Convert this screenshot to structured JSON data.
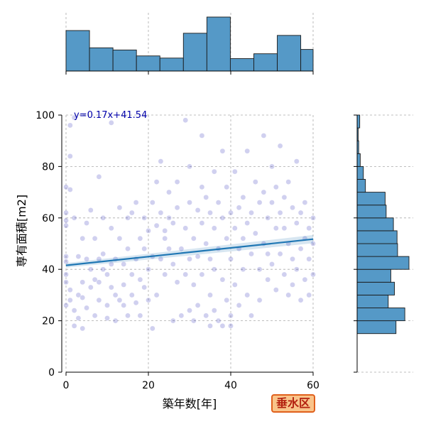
{
  "colors": {
    "hist_fill": "#5599c7",
    "hist_edge": "#1a1a1a",
    "point": "#2a2ab8",
    "regression": "#1f77b4",
    "grid": "#aaaaaa",
    "equation": "#0000aa",
    "badge_bg": "#f9c48a",
    "badge_border": "#e0601c",
    "badge_text": "#b3200f"
  },
  "badge": {
    "text": "垂水区"
  },
  "chart_data": {
    "type": "scatter",
    "xlabel": "築年数[年]",
    "ylabel": "専有面積[m2]",
    "xlim": [
      0,
      60
    ],
    "ylim": [
      0,
      100
    ],
    "x_ticks": [
      0,
      20,
      40,
      60
    ],
    "y_ticks": [
      0,
      20,
      40,
      60,
      80,
      100
    ],
    "grid": true,
    "regression": {
      "equation_label": "y=0.17x+41.54",
      "slope": 0.17,
      "intercept": 41.54
    },
    "marginal_x": {
      "type": "histogram",
      "bin_edges": [
        0,
        5.7,
        11.4,
        17.1,
        22.8,
        28.5,
        34.2,
        39.9,
        45.6,
        51.3,
        57,
        62.7
      ],
      "counts": [
        75,
        43,
        39,
        28,
        24,
        70,
        100,
        23,
        32,
        66,
        40
      ]
    },
    "marginal_y": {
      "type": "histogram",
      "bin_edges": [
        15,
        20,
        25,
        30,
        35,
        40,
        45,
        50,
        55,
        60,
        65,
        70,
        75,
        80,
        85,
        90,
        95,
        100
      ],
      "counts": [
        75,
        92,
        60,
        72,
        65,
        100,
        78,
        77,
        70,
        56,
        54,
        16,
        12,
        6,
        3,
        2,
        5
      ]
    },
    "points": [
      {
        "x": 0,
        "y": 43
      },
      {
        "x": 0,
        "y": 57
      },
      {
        "x": 0,
        "y": 62
      },
      {
        "x": 0,
        "y": 59
      },
      {
        "x": 0,
        "y": 72
      },
      {
        "x": 0,
        "y": 35
      },
      {
        "x": 0,
        "y": 26
      },
      {
        "x": 0,
        "y": 38
      },
      {
        "x": 0,
        "y": 45
      },
      {
        "x": 1,
        "y": 96
      },
      {
        "x": 1,
        "y": 71
      },
      {
        "x": 1,
        "y": 84
      },
      {
        "x": 1,
        "y": 28
      },
      {
        "x": 1,
        "y": 32
      },
      {
        "x": 2,
        "y": 99
      },
      {
        "x": 2,
        "y": 60
      },
      {
        "x": 2,
        "y": 24
      },
      {
        "x": 2,
        "y": 18
      },
      {
        "x": 3,
        "y": 45
      },
      {
        "x": 3,
        "y": 30
      },
      {
        "x": 3,
        "y": 21
      },
      {
        "x": 4,
        "y": 52
      },
      {
        "x": 4,
        "y": 35
      },
      {
        "x": 4,
        "y": 29
      },
      {
        "x": 4,
        "y": 17
      },
      {
        "x": 5,
        "y": 58
      },
      {
        "x": 5,
        "y": 44
      },
      {
        "x": 5,
        "y": 25
      },
      {
        "x": 6,
        "y": 63
      },
      {
        "x": 6,
        "y": 40
      },
      {
        "x": 6,
        "y": 33
      },
      {
        "x": 7,
        "y": 36
      },
      {
        "x": 7,
        "y": 52
      },
      {
        "x": 7,
        "y": 22
      },
      {
        "x": 8,
        "y": 44
      },
      {
        "x": 8,
        "y": 35
      },
      {
        "x": 8,
        "y": 76
      },
      {
        "x": 8,
        "y": 28
      },
      {
        "x": 9,
        "y": 46
      },
      {
        "x": 9,
        "y": 40
      },
      {
        "x": 9,
        "y": 60
      },
      {
        "x": 10,
        "y": 26
      },
      {
        "x": 10,
        "y": 38
      },
      {
        "x": 10,
        "y": 21
      },
      {
        "x": 11,
        "y": 56
      },
      {
        "x": 11,
        "y": 42
      },
      {
        "x": 11,
        "y": 33
      },
      {
        "x": 11,
        "y": 97
      },
      {
        "x": 12,
        "y": 20
      },
      {
        "x": 12,
        "y": 30
      },
      {
        "x": 12,
        "y": 44
      },
      {
        "x": 13,
        "y": 64
      },
      {
        "x": 13,
        "y": 52
      },
      {
        "x": 13,
        "y": 28
      },
      {
        "x": 14,
        "y": 34
      },
      {
        "x": 14,
        "y": 42
      },
      {
        "x": 14,
        "y": 26
      },
      {
        "x": 15,
        "y": 48
      },
      {
        "x": 15,
        "y": 22
      },
      {
        "x": 15,
        "y": 60
      },
      {
        "x": 16,
        "y": 38
      },
      {
        "x": 16,
        "y": 30
      },
      {
        "x": 16,
        "y": 62
      },
      {
        "x": 17,
        "y": 66
      },
      {
        "x": 17,
        "y": 44
      },
      {
        "x": 17,
        "y": 27
      },
      {
        "x": 18,
        "y": 52
      },
      {
        "x": 18,
        "y": 36
      },
      {
        "x": 18,
        "y": 22
      },
      {
        "x": 19,
        "y": 60
      },
      {
        "x": 19,
        "y": 48
      },
      {
        "x": 19,
        "y": 33
      },
      {
        "x": 20,
        "y": 40
      },
      {
        "x": 20,
        "y": 55
      },
      {
        "x": 20,
        "y": 28
      },
      {
        "x": 21,
        "y": 66
      },
      {
        "x": 21,
        "y": 45
      },
      {
        "x": 21,
        "y": 17
      },
      {
        "x": 22,
        "y": 57
      },
      {
        "x": 22,
        "y": 74
      },
      {
        "x": 22,
        "y": 30
      },
      {
        "x": 23,
        "y": 82
      },
      {
        "x": 23,
        "y": 62
      },
      {
        "x": 23,
        "y": 44
      },
      {
        "x": 24,
        "y": 55
      },
      {
        "x": 24,
        "y": 38
      },
      {
        "x": 24,
        "y": 52
      },
      {
        "x": 25,
        "y": 60
      },
      {
        "x": 25,
        "y": 48
      },
      {
        "x": 25,
        "y": 70
      },
      {
        "x": 26,
        "y": 20
      },
      {
        "x": 26,
        "y": 42
      },
      {
        "x": 26,
        "y": 58
      },
      {
        "x": 27,
        "y": 74
      },
      {
        "x": 27,
        "y": 35
      },
      {
        "x": 27,
        "y": 64
      },
      {
        "x": 28,
        "y": 22
      },
      {
        "x": 28,
        "y": 48
      },
      {
        "x": 29,
        "y": 56
      },
      {
        "x": 29,
        "y": 98
      },
      {
        "x": 29,
        "y": 38
      },
      {
        "x": 30,
        "y": 44
      },
      {
        "x": 30,
        "y": 24
      },
      {
        "x": 30,
        "y": 66
      },
      {
        "x": 30,
        "y": 80
      },
      {
        "x": 31,
        "y": 52
      },
      {
        "x": 31,
        "y": 34
      },
      {
        "x": 31,
        "y": 20
      },
      {
        "x": 32,
        "y": 63
      },
      {
        "x": 32,
        "y": 45
      },
      {
        "x": 32,
        "y": 26
      },
      {
        "x": 33,
        "y": 72
      },
      {
        "x": 33,
        "y": 58
      },
      {
        "x": 33,
        "y": 38
      },
      {
        "x": 33,
        "y": 92
      },
      {
        "x": 34,
        "y": 50
      },
      {
        "x": 34,
        "y": 22
      },
      {
        "x": 34,
        "y": 68
      },
      {
        "x": 35,
        "y": 62
      },
      {
        "x": 35,
        "y": 44
      },
      {
        "x": 35,
        "y": 30
      },
      {
        "x": 35,
        "y": 18
      },
      {
        "x": 36,
        "y": 56
      },
      {
        "x": 36,
        "y": 40
      },
      {
        "x": 36,
        "y": 24
      },
      {
        "x": 36,
        "y": 78
      },
      {
        "x": 37,
        "y": 66
      },
      {
        "x": 37,
        "y": 48
      },
      {
        "x": 37,
        "y": 20
      },
      {
        "x": 38,
        "y": 60
      },
      {
        "x": 38,
        "y": 36
      },
      {
        "x": 38,
        "y": 18
      },
      {
        "x": 38,
        "y": 86
      },
      {
        "x": 39,
        "y": 52
      },
      {
        "x": 39,
        "y": 72
      },
      {
        "x": 39,
        "y": 28
      },
      {
        "x": 40,
        "y": 44
      },
      {
        "x": 40,
        "y": 62
      },
      {
        "x": 40,
        "y": 22
      },
      {
        "x": 40,
        "y": 18
      },
      {
        "x": 41,
        "y": 56
      },
      {
        "x": 41,
        "y": 34
      },
      {
        "x": 41,
        "y": 78
      },
      {
        "x": 42,
        "y": 48
      },
      {
        "x": 42,
        "y": 64
      },
      {
        "x": 42,
        "y": 26
      },
      {
        "x": 43,
        "y": 52
      },
      {
        "x": 43,
        "y": 40
      },
      {
        "x": 43,
        "y": 68
      },
      {
        "x": 44,
        "y": 58
      },
      {
        "x": 44,
        "y": 30
      },
      {
        "x": 44,
        "y": 86
      },
      {
        "x": 45,
        "y": 62
      },
      {
        "x": 45,
        "y": 46
      },
      {
        "x": 45,
        "y": 22
      },
      {
        "x": 46,
        "y": 54
      },
      {
        "x": 46,
        "y": 74
      },
      {
        "x": 47,
        "y": 40
      },
      {
        "x": 47,
        "y": 66
      },
      {
        "x": 47,
        "y": 28
      },
      {
        "x": 48,
        "y": 70
      },
      {
        "x": 48,
        "y": 50
      },
      {
        "x": 48,
        "y": 92
      },
      {
        "x": 49,
        "y": 36
      },
      {
        "x": 49,
        "y": 60
      },
      {
        "x": 49,
        "y": 46
      },
      {
        "x": 50,
        "y": 42
      },
      {
        "x": 50,
        "y": 66
      },
      {
        "x": 50,
        "y": 80
      },
      {
        "x": 51,
        "y": 56
      },
      {
        "x": 51,
        "y": 32
      },
      {
        "x": 51,
        "y": 72
      },
      {
        "x": 52,
        "y": 62
      },
      {
        "x": 52,
        "y": 46
      },
      {
        "x": 52,
        "y": 88
      },
      {
        "x": 53,
        "y": 68
      },
      {
        "x": 53,
        "y": 38
      },
      {
        "x": 53,
        "y": 56
      },
      {
        "x": 54,
        "y": 50
      },
      {
        "x": 54,
        "y": 30
      },
      {
        "x": 54,
        "y": 74
      },
      {
        "x": 55,
        "y": 64
      },
      {
        "x": 55,
        "y": 44
      },
      {
        "x": 55,
        "y": 34
      },
      {
        "x": 56,
        "y": 58
      },
      {
        "x": 56,
        "y": 40
      },
      {
        "x": 56,
        "y": 82
      },
      {
        "x": 57,
        "y": 62
      },
      {
        "x": 57,
        "y": 48
      },
      {
        "x": 57,
        "y": 28
      },
      {
        "x": 58,
        "y": 52
      },
      {
        "x": 58,
        "y": 36
      },
      {
        "x": 58,
        "y": 66
      },
      {
        "x": 59,
        "y": 56
      },
      {
        "x": 59,
        "y": 44
      },
      {
        "x": 59,
        "y": 30
      },
      {
        "x": 60,
        "y": 60
      },
      {
        "x": 60,
        "y": 50
      },
      {
        "x": 60,
        "y": 38
      }
    ]
  }
}
